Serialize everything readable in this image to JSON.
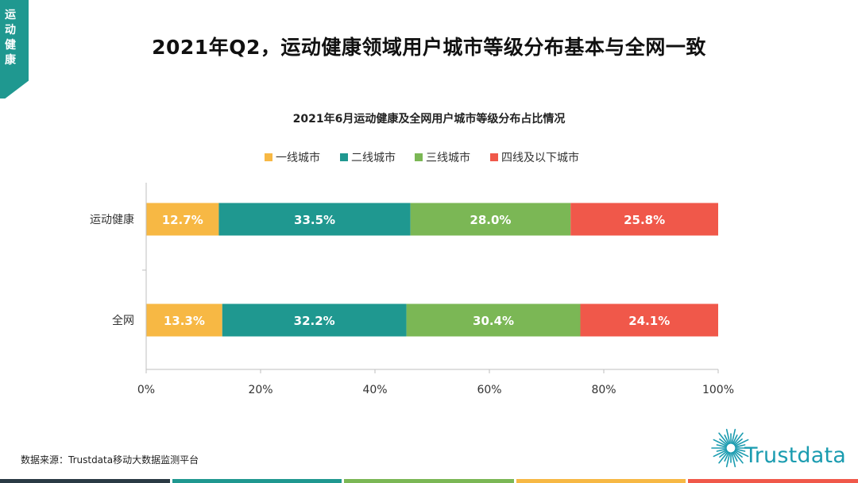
{
  "side_tab": {
    "label": "运动健康",
    "color": "#1f9890"
  },
  "page_title": "2021年Q2，运动健康领域用户城市等级分布基本与全网一致",
  "chart_data": {
    "type": "bar",
    "orientation": "horizontal",
    "stacked": true,
    "title": "2021年6月运动健康及全网用户城市等级分布占比情况",
    "categories": [
      "运动健康",
      "全网"
    ],
    "series": [
      {
        "name": "一线城市",
        "color": "#f7b844",
        "values": [
          12.7,
          13.3
        ],
        "labels": [
          "12.7%",
          "13.3%"
        ]
      },
      {
        "name": "二线城市",
        "color": "#1f9890",
        "values": [
          33.5,
          32.2
        ],
        "labels": [
          "33.5%",
          "32.2%"
        ]
      },
      {
        "name": "三线城市",
        "color": "#7bb755",
        "values": [
          28.0,
          30.4
        ],
        "labels": [
          "28.0%",
          "30.4%"
        ]
      },
      {
        "name": "四线及以下城市",
        "color": "#f0584a",
        "values": [
          25.8,
          24.1
        ],
        "labels": [
          "25.8%",
          "24.1%"
        ]
      }
    ],
    "xlim": [
      0,
      100
    ],
    "xticks": [
      0,
      20,
      40,
      60,
      80,
      100
    ],
    "xtick_labels": [
      "0%",
      "20%",
      "40%",
      "60%",
      "80%",
      "100%"
    ],
    "legend": "top-center",
    "grid": false
  },
  "source": "数据来源：Trustdata移动大数据监测平台",
  "logo": {
    "text": "Trustdata",
    "icon": "sunburst-icon",
    "color": "#1b9cb0"
  },
  "footer_colors": [
    "#2a3a44",
    "#1f9890",
    "#7bb755",
    "#f7b844",
    "#f0584a"
  ]
}
